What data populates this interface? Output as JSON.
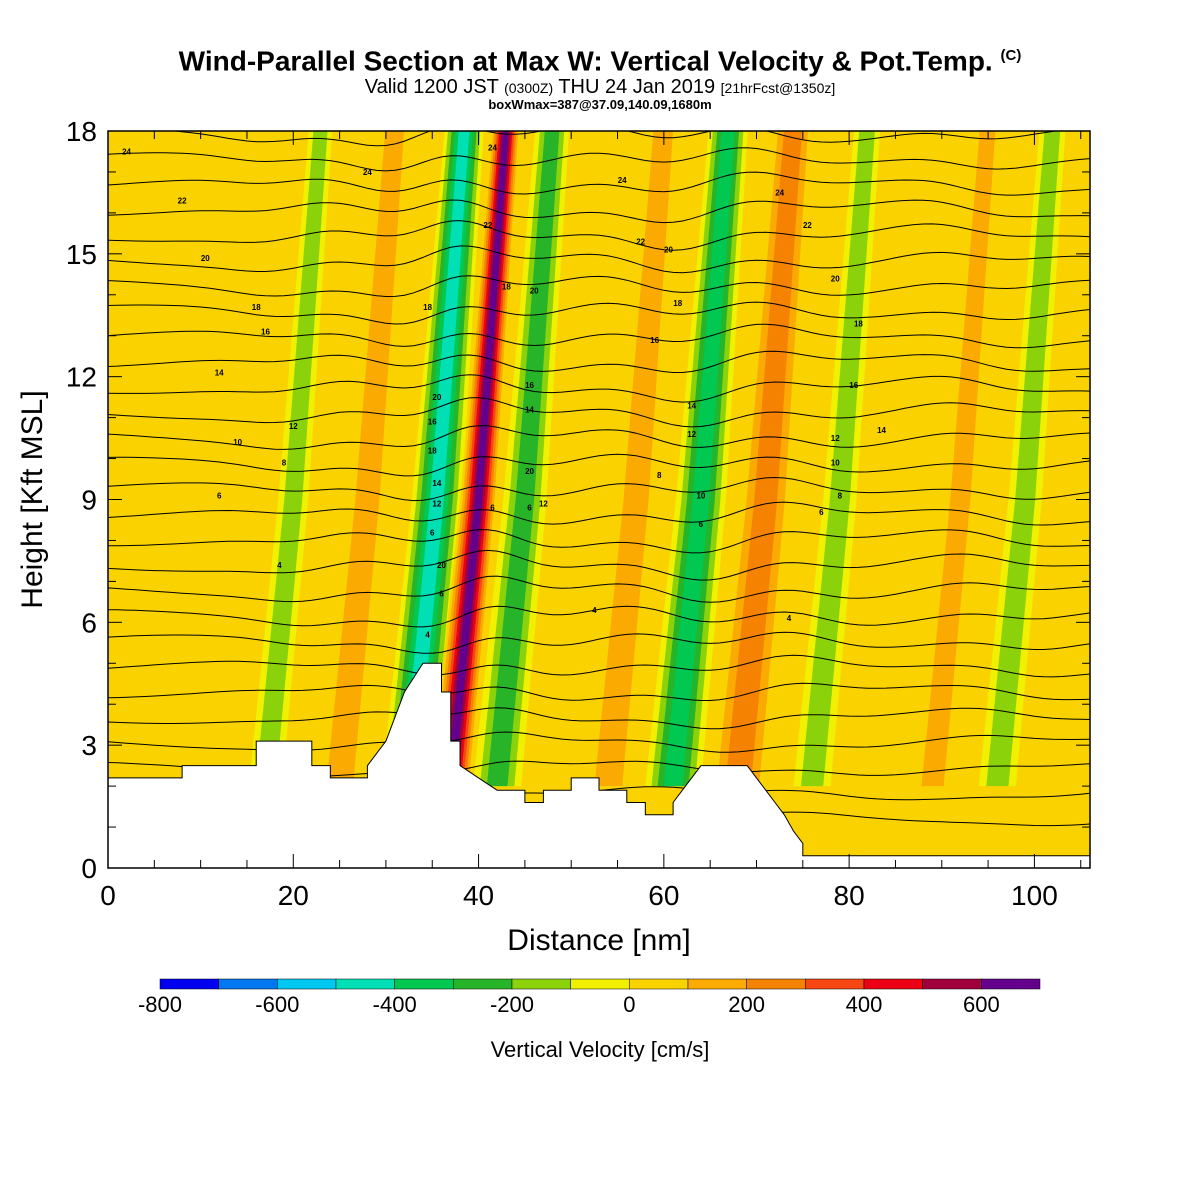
{
  "title": {
    "main": "Wind-Parallel Section at Max W: Vertical Velocity & Pot.Temp.",
    "main_suffix": "(C)",
    "valid_prefix": "Valid 1200 JST",
    "valid_zulu": "(0300Z)",
    "valid_date": "THU 24 Jan 2019",
    "forecast": "[21hrFcst@1350z]",
    "box": "boxWmax=387@37.09,140.09,1680m"
  },
  "chart_data": {
    "type": "heatmap",
    "xlabel": "Distance [nm]",
    "ylabel": "Height [Kft MSL]",
    "xlim": [
      0,
      106
    ],
    "ylim": [
      0,
      18
    ],
    "x_ticks": [
      0,
      20,
      40,
      60,
      80,
      100
    ],
    "y_ticks": [
      0,
      3,
      6,
      9,
      12,
      15,
      18
    ],
    "colorbar": {
      "label": "Vertical Velocity [cm/s]",
      "ticks": [
        -800,
        -600,
        -400,
        -200,
        0,
        200,
        400,
        600
      ],
      "levels": [
        -800,
        -700,
        -600,
        -500,
        -400,
        -300,
        -200,
        -100,
        0,
        100,
        200,
        300,
        400,
        500,
        600,
        700
      ],
      "colors": [
        "#0000f0",
        "#0078f0",
        "#00c8f0",
        "#00e0b4",
        "#00c850",
        "#28b428",
        "#8cd20a",
        "#f0f000",
        "#fad200",
        "#faaa00",
        "#f58200",
        "#f54614",
        "#eb0014",
        "#a0003c",
        "#64008c"
      ]
    },
    "updraft_columns": [
      {
        "x": 20,
        "w": 1.8,
        "value": -150
      },
      {
        "x": 28,
        "w": 2.4,
        "value": 150
      },
      {
        "x": 35.5,
        "w": 3,
        "value": -450
      },
      {
        "x": 40,
        "w": 2.2,
        "value": 650
      },
      {
        "x": 45,
        "w": 2.6,
        "value": -250
      },
      {
        "x": 57,
        "w": 2.5,
        "value": 200
      },
      {
        "x": 64,
        "w": 3,
        "value": -400
      },
      {
        "x": 71,
        "w": 3.2,
        "value": 300
      },
      {
        "x": 79,
        "w": 2,
        "value": -150
      },
      {
        "x": 92,
        "w": 2,
        "value": 150
      },
      {
        "x": 99,
        "w": 2,
        "value": -150
      }
    ],
    "terrain_kft": [
      [
        0,
        2.2
      ],
      [
        8,
        2.2
      ],
      [
        8,
        2.5
      ],
      [
        16,
        2.5
      ],
      [
        16,
        3.1
      ],
      [
        22,
        3.1
      ],
      [
        22,
        2.5
      ],
      [
        24,
        2.5
      ],
      [
        24,
        2.2
      ],
      [
        28,
        2.2
      ],
      [
        28,
        2.5
      ],
      [
        30,
        3.1
      ],
      [
        32,
        4.3
      ],
      [
        34,
        5.0
      ],
      [
        36,
        5.0
      ],
      [
        36,
        4.3
      ],
      [
        37,
        4.3
      ],
      [
        37,
        3.1
      ],
      [
        38,
        3.1
      ],
      [
        38,
        2.5
      ],
      [
        40,
        2.2
      ],
      [
        42,
        1.9
      ],
      [
        45,
        1.9
      ],
      [
        45,
        1.6
      ],
      [
        47,
        1.6
      ],
      [
        47,
        1.9
      ],
      [
        50,
        1.9
      ],
      [
        50,
        2.2
      ],
      [
        53,
        2.2
      ],
      [
        53,
        1.9
      ],
      [
        56,
        1.9
      ],
      [
        56,
        1.6
      ],
      [
        58,
        1.6
      ],
      [
        58,
        1.3
      ],
      [
        61,
        1.3
      ],
      [
        61,
        1.6
      ],
      [
        62,
        1.9
      ],
      [
        63,
        2.2
      ],
      [
        64,
        2.5
      ],
      [
        69,
        2.5
      ],
      [
        70,
        2.2
      ],
      [
        71,
        1.9
      ],
      [
        72,
        1.6
      ],
      [
        73,
        1.3
      ],
      [
        74,
        0.9
      ],
      [
        75,
        0.6
      ],
      [
        75,
        0.3
      ],
      [
        106,
        0.3
      ]
    ],
    "isentrope_labels": [
      {
        "x": 2,
        "y": 17.5,
        "text": "24"
      },
      {
        "x": 28,
        "y": 17.0,
        "text": "24"
      },
      {
        "x": 41.5,
        "y": 17.6,
        "text": "24"
      },
      {
        "x": 55.5,
        "y": 16.8,
        "text": "24"
      },
      {
        "x": 72.5,
        "y": 16.5,
        "text": "24"
      },
      {
        "x": 8,
        "y": 16.3,
        "text": "22"
      },
      {
        "x": 41,
        "y": 15.7,
        "text": "22"
      },
      {
        "x": 57.5,
        "y": 15.3,
        "text": "22"
      },
      {
        "x": 75.5,
        "y": 15.7,
        "text": "22"
      },
      {
        "x": 10.5,
        "y": 14.9,
        "text": "20"
      },
      {
        "x": 46,
        "y": 14.1,
        "text": "20"
      },
      {
        "x": 60.5,
        "y": 15.1,
        "text": "20"
      },
      {
        "x": 78.5,
        "y": 14.4,
        "text": "20"
      },
      {
        "x": 16,
        "y": 13.7,
        "text": "18"
      },
      {
        "x": 34.5,
        "y": 13.7,
        "text": "18"
      },
      {
        "x": 43,
        "y": 14.2,
        "text": "18"
      },
      {
        "x": 61.5,
        "y": 13.8,
        "text": "18"
      },
      {
        "x": 81,
        "y": 13.3,
        "text": "18"
      },
      {
        "x": 17,
        "y": 13.1,
        "text": "16"
      },
      {
        "x": 59,
        "y": 12.9,
        "text": "16"
      },
      {
        "x": 45.5,
        "y": 11.8,
        "text": "16"
      },
      {
        "x": 35,
        "y": 10.9,
        "text": "16"
      },
      {
        "x": 80.5,
        "y": 11.8,
        "text": "16"
      },
      {
        "x": 12,
        "y": 12.1,
        "text": "14"
      },
      {
        "x": 45.5,
        "y": 11.2,
        "text": "14"
      },
      {
        "x": 63,
        "y": 11.3,
        "text": "14"
      },
      {
        "x": 83.5,
        "y": 10.7,
        "text": "14"
      },
      {
        "x": 20,
        "y": 10.8,
        "text": "12"
      },
      {
        "x": 63,
        "y": 10.6,
        "text": "12"
      },
      {
        "x": 78.5,
        "y": 10.5,
        "text": "12"
      },
      {
        "x": 35.5,
        "y": 8.9,
        "text": "12"
      },
      {
        "x": 47,
        "y": 8.9,
        "text": "12"
      },
      {
        "x": 14,
        "y": 10.4,
        "text": "10"
      },
      {
        "x": 64,
        "y": 9.1,
        "text": "10"
      },
      {
        "x": 78.5,
        "y": 9.9,
        "text": "10"
      },
      {
        "x": 35.5,
        "y": 11.5,
        "text": "20"
      },
      {
        "x": 45.5,
        "y": 9.7,
        "text": "20"
      },
      {
        "x": 36,
        "y": 7.4,
        "text": "20"
      },
      {
        "x": 35,
        "y": 10.2,
        "text": "18"
      },
      {
        "x": 35.5,
        "y": 9.4,
        "text": "14"
      },
      {
        "x": 19,
        "y": 9.9,
        "text": "8"
      },
      {
        "x": 59.5,
        "y": 9.6,
        "text": "8"
      },
      {
        "x": 79,
        "y": 9.1,
        "text": "8"
      },
      {
        "x": 12,
        "y": 9.1,
        "text": "6"
      },
      {
        "x": 35,
        "y": 8.2,
        "text": "6"
      },
      {
        "x": 36,
        "y": 6.7,
        "text": "6"
      },
      {
        "x": 41.5,
        "y": 8.8,
        "text": "6"
      },
      {
        "x": 45.5,
        "y": 8.8,
        "text": "6"
      },
      {
        "x": 64,
        "y": 8.4,
        "text": "6"
      },
      {
        "x": 77,
        "y": 8.7,
        "text": "6"
      },
      {
        "x": 18.5,
        "y": 7.4,
        "text": "4"
      },
      {
        "x": 34.5,
        "y": 5.7,
        "text": "4"
      },
      {
        "x": 52.5,
        "y": 6.3,
        "text": "4"
      },
      {
        "x": 73.5,
        "y": 6.1,
        "text": "4"
      }
    ]
  }
}
